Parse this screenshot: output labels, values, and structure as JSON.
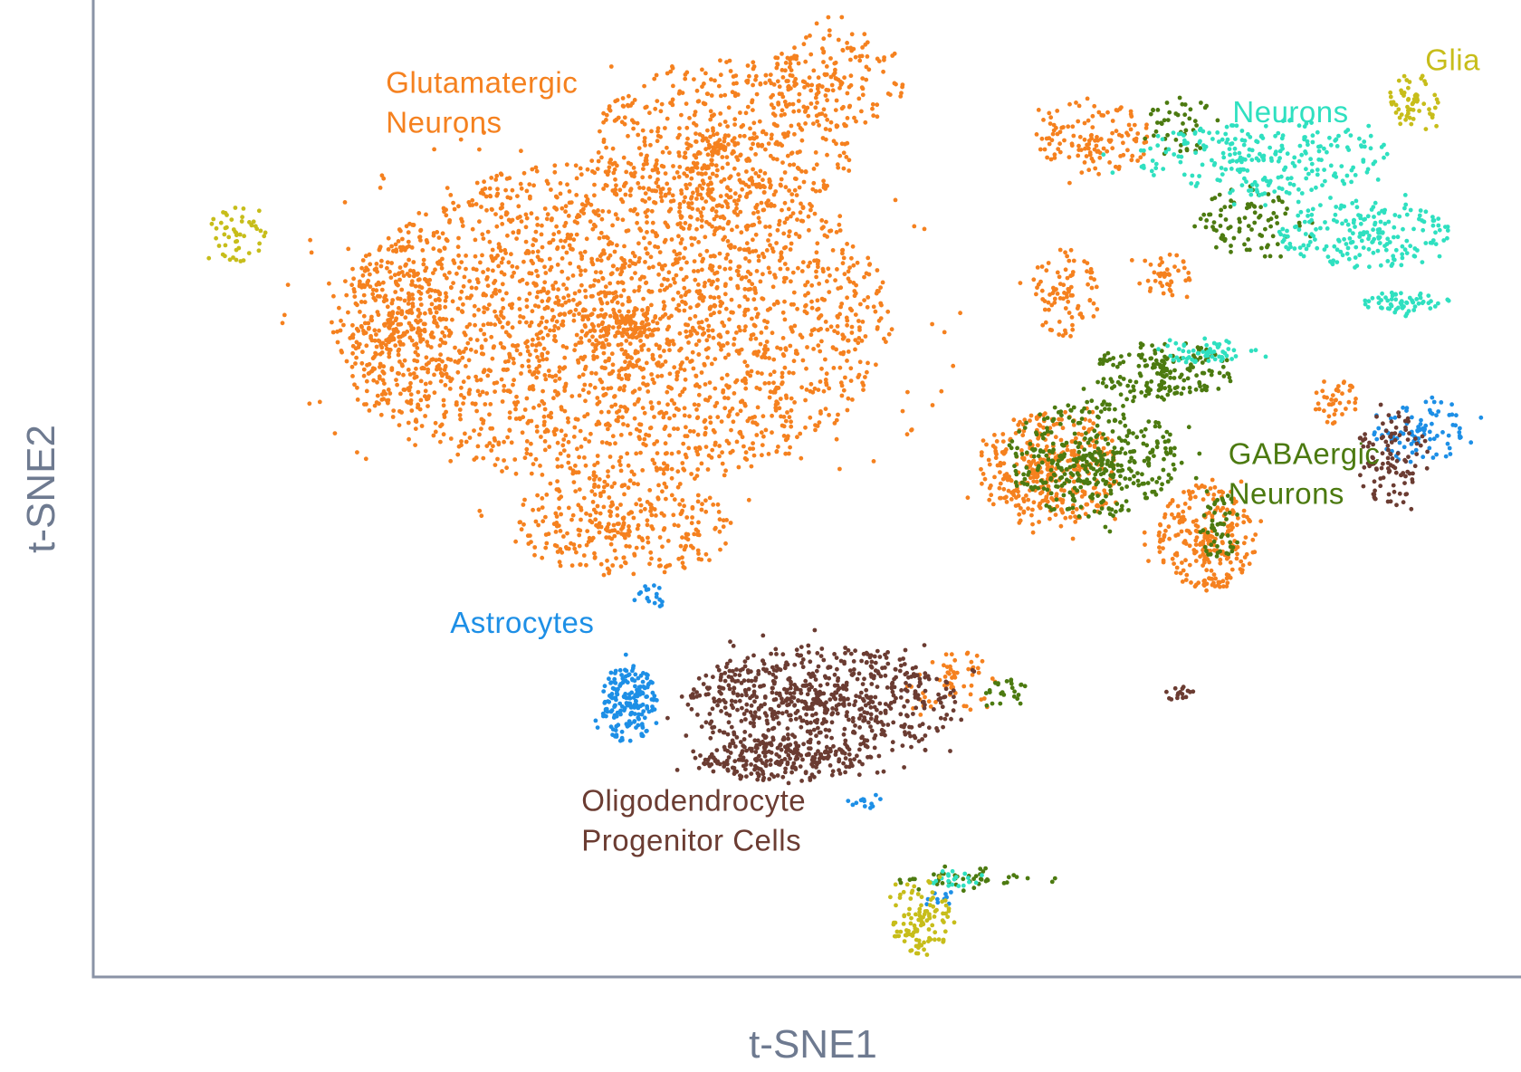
{
  "chart_data": {
    "type": "scatter",
    "title": "",
    "xlabel": "t-SNE1",
    "ylabel": "t-SNE2",
    "xlim": [
      0,
      100
    ],
    "ylim": [
      0,
      100
    ],
    "grid": false,
    "legend": "none",
    "series": [
      {
        "id": "glutamatergic",
        "name": [
          "Glutamatergic",
          "Neurons"
        ],
        "color": "#f5811f",
        "label_at": [
          20.5,
          90.5
        ],
        "label_anchor": "start",
        "regions": [
          {
            "cx": 37,
            "cy": 67,
            "rx": 19,
            "ry": 17,
            "n": 2600
          },
          {
            "cx": 44,
            "cy": 85,
            "rx": 9,
            "ry": 9,
            "n": 550
          },
          {
            "cx": 52,
            "cy": 92,
            "rx": 5,
            "ry": 5,
            "n": 160
          },
          {
            "cx": 21,
            "cy": 66,
            "rx": 4,
            "ry": 9,
            "n": 280
          },
          {
            "cx": 37,
            "cy": 46,
            "rx": 8,
            "ry": 5,
            "n": 300
          },
          {
            "cx": 70,
            "cy": 86,
            "rx": 4,
            "ry": 4,
            "n": 130
          },
          {
            "cx": 68,
            "cy": 70,
            "rx": 2.5,
            "ry": 4.5,
            "n": 90
          },
          {
            "cx": 75,
            "cy": 72,
            "rx": 2,
            "ry": 2.5,
            "n": 45
          },
          {
            "cx": 67,
            "cy": 52,
            "rx": 5,
            "ry": 6,
            "n": 380
          },
          {
            "cx": 78,
            "cy": 45,
            "rx": 3.5,
            "ry": 5.5,
            "n": 260
          },
          {
            "cx": 60,
            "cy": 30,
            "rx": 3.5,
            "ry": 3.5,
            "n": 60
          },
          {
            "cx": 87,
            "cy": 59,
            "rx": 1.5,
            "ry": 2.5,
            "n": 40
          }
        ]
      },
      {
        "id": "gabaergic",
        "name": [
          "GABAergic",
          "Neurons"
        ],
        "color": "#4c7a10",
        "label_at": [
          79.5,
          52.5
        ],
        "label_anchor": "start",
        "regions": [
          {
            "cx": 70,
            "cy": 53,
            "rx": 6,
            "ry": 6,
            "n": 400
          },
          {
            "cx": 75,
            "cy": 62,
            "rx": 5,
            "ry": 3,
            "n": 180
          },
          {
            "cx": 81,
            "cy": 77,
            "rx": 3.5,
            "ry": 4,
            "n": 90
          },
          {
            "cx": 76,
            "cy": 87,
            "rx": 3,
            "ry": 3,
            "n": 45
          },
          {
            "cx": 79,
            "cy": 46,
            "rx": 1.5,
            "ry": 3.5,
            "n": 50
          },
          {
            "cx": 64,
            "cy": 29,
            "rx": 1.5,
            "ry": 1.5,
            "n": 25
          },
          {
            "cx": 62,
            "cy": 10,
            "rx": 6,
            "ry": 1.5,
            "n": 45
          }
        ]
      },
      {
        "id": "neurons",
        "name": [
          "Neurons"
        ],
        "color": "#2fe0c0",
        "label_at": [
          79.8,
          87.5
        ],
        "label_anchor": "start",
        "regions": [
          {
            "cx": 82,
            "cy": 84,
            "rx": 9,
            "ry": 4,
            "n": 260
          },
          {
            "cx": 89,
            "cy": 76,
            "rx": 6,
            "ry": 3.5,
            "n": 200
          },
          {
            "cx": 78,
            "cy": 64,
            "rx": 3.5,
            "ry": 1.2,
            "n": 60
          },
          {
            "cx": 92,
            "cy": 69,
            "rx": 3,
            "ry": 1.2,
            "n": 60
          },
          {
            "cx": 60,
            "cy": 10,
            "rx": 3,
            "ry": 1,
            "n": 20
          }
        ]
      },
      {
        "id": "astrocytes",
        "name": [
          "Astrocytes"
        ],
        "color": "#1d8fe6",
        "label_at": [
          25.0,
          35.2
        ],
        "label_anchor": "start",
        "regions": [
          {
            "cx": 37.5,
            "cy": 28,
            "rx": 2,
            "ry": 4,
            "n": 190
          },
          {
            "cx": 93,
            "cy": 56,
            "rx": 3.5,
            "ry": 3.5,
            "n": 90
          },
          {
            "cx": 39,
            "cy": 39,
            "rx": 1.5,
            "ry": 1.2,
            "n": 18
          },
          {
            "cx": 54,
            "cy": 18,
            "rx": 1.5,
            "ry": 0.8,
            "n": 14
          },
          {
            "cx": 59,
            "cy": 8,
            "rx": 1.5,
            "ry": 1,
            "n": 10
          }
        ]
      },
      {
        "id": "opc",
        "name": [
          "Oligodendrocyte",
          "Progenitor Cells"
        ],
        "color": "#6b3c32",
        "label_at": [
          34.2,
          17.0
        ],
        "label_anchor": "start",
        "regions": [
          {
            "cx": 51,
            "cy": 28,
            "rx": 9.5,
            "ry": 6,
            "n": 750
          },
          {
            "cx": 48,
            "cy": 22,
            "rx": 6,
            "ry": 2,
            "n": 200
          },
          {
            "cx": 91,
            "cy": 53,
            "rx": 2.5,
            "ry": 5,
            "n": 110
          },
          {
            "cx": 76,
            "cy": 29,
            "rx": 1.2,
            "ry": 0.8,
            "n": 16
          }
        ]
      },
      {
        "id": "glia",
        "name": [
          "Glia"
        ],
        "color": "#c7bd1a",
        "label_at": [
          93.3,
          92.8
        ],
        "label_anchor": "start",
        "regions": [
          {
            "cx": 92.5,
            "cy": 89.5,
            "rx": 1.8,
            "ry": 3,
            "n": 60
          },
          {
            "cx": 58,
            "cy": 6,
            "rx": 2,
            "ry": 4,
            "n": 110
          },
          {
            "cx": 10,
            "cy": 76,
            "rx": 2,
            "ry": 3,
            "n": 50
          }
        ]
      }
    ]
  }
}
